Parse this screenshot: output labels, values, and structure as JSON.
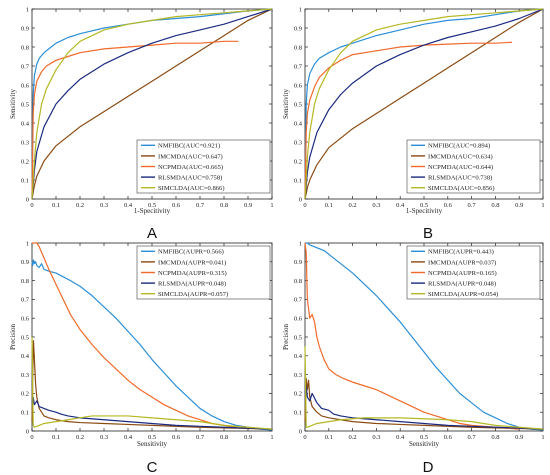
{
  "chart_data": [
    {
      "panel_label": "A",
      "type": "line",
      "xlabel": "1-Specitivity",
      "ylabel": "Sensitivity",
      "xlim": [
        0,
        1
      ],
      "ylim": [
        0,
        1
      ],
      "xticks": [
        "0",
        "0.1",
        "0.2",
        "0.3",
        "0.4",
        "0.5",
        "0.6",
        "0.7",
        "0.8",
        "0.9",
        "1"
      ],
      "yticks": [
        "0",
        "0.1",
        "0.2",
        "0.3",
        "0.4",
        "0.5",
        "0.6",
        "0.7",
        "0.8",
        "0.9",
        "1"
      ],
      "grid": false,
      "legend_position": "bottom-right",
      "series": [
        {
          "name": "NMFIBC(AUC=0.921)",
          "color": "#2b8fd8",
          "x": [
            0,
            0.005,
            0.01,
            0.02,
            0.03,
            0.05,
            0.08,
            0.1,
            0.15,
            0.2,
            0.3,
            0.4,
            0.5,
            0.6,
            0.7,
            0.8,
            0.9,
            1
          ],
          "y": [
            0,
            0.55,
            0.65,
            0.71,
            0.74,
            0.77,
            0.8,
            0.82,
            0.85,
            0.87,
            0.9,
            0.92,
            0.94,
            0.95,
            0.96,
            0.975,
            0.99,
            1
          ]
        },
        {
          "name": "IMCMDA(AUC=0.647)",
          "color": "#8b4a12",
          "x": [
            0,
            0.01,
            0.02,
            0.05,
            0.1,
            0.2,
            0.3,
            0.4,
            0.5,
            0.6,
            0.7,
            0.8,
            0.9,
            1
          ],
          "y": [
            0,
            0.07,
            0.12,
            0.2,
            0.28,
            0.38,
            0.46,
            0.54,
            0.62,
            0.7,
            0.78,
            0.86,
            0.94,
            1
          ]
        },
        {
          "name": "NCPMDA(AUC=0.665)",
          "color": "#f26a2a",
          "x": [
            0,
            0.005,
            0.01,
            0.02,
            0.04,
            0.06,
            0.1,
            0.15,
            0.2,
            0.3,
            0.4,
            0.5,
            0.6,
            0.7,
            0.8,
            0.86
          ],
          "y": [
            0,
            0.45,
            0.55,
            0.62,
            0.67,
            0.7,
            0.73,
            0.75,
            0.77,
            0.79,
            0.8,
            0.81,
            0.82,
            0.82,
            0.83,
            0.83
          ]
        },
        {
          "name": "RLSMDA(AUC=0.758)",
          "color": "#1a2a80",
          "x": [
            0,
            0.01,
            0.02,
            0.05,
            0.1,
            0.15,
            0.2,
            0.3,
            0.4,
            0.5,
            0.6,
            0.7,
            0.8,
            0.9,
            1
          ],
          "y": [
            0,
            0.15,
            0.25,
            0.38,
            0.5,
            0.57,
            0.63,
            0.71,
            0.77,
            0.82,
            0.86,
            0.89,
            0.92,
            0.96,
            1
          ]
        },
        {
          "name": "SIMCLDA(AUC=0.866)",
          "color": "#b5b822",
          "x": [
            0,
            0.01,
            0.02,
            0.04,
            0.06,
            0.1,
            0.15,
            0.2,
            0.3,
            0.4,
            0.5,
            0.6,
            0.7,
            0.8,
            0.9,
            1
          ],
          "y": [
            0,
            0.2,
            0.35,
            0.5,
            0.58,
            0.68,
            0.77,
            0.83,
            0.89,
            0.92,
            0.94,
            0.96,
            0.97,
            0.98,
            0.99,
            1
          ]
        }
      ]
    },
    {
      "panel_label": "B",
      "type": "line",
      "xlabel": "1-Specitivity",
      "ylabel": "Sensitivity",
      "xlim": [
        0,
        1
      ],
      "ylim": [
        0,
        1
      ],
      "xticks": [
        "0",
        "0.1",
        "0.2",
        "0.3",
        "0.4",
        "0.5",
        "0.6",
        "0.7",
        "0.8",
        "0.9",
        "1"
      ],
      "yticks": [
        "0",
        "0.1",
        "0.2",
        "0.3",
        "0.4",
        "0.5",
        "0.6",
        "0.7",
        "0.8",
        "0.9",
        "1"
      ],
      "grid": false,
      "legend_position": "bottom-right",
      "series": [
        {
          "name": "NMFIBC(AUC=0.894)",
          "color": "#2b8fd8",
          "x": [
            0,
            0.005,
            0.01,
            0.02,
            0.04,
            0.06,
            0.1,
            0.15,
            0.2,
            0.3,
            0.4,
            0.5,
            0.6,
            0.7,
            0.8,
            0.9,
            1
          ],
          "y": [
            0,
            0.5,
            0.6,
            0.66,
            0.71,
            0.74,
            0.77,
            0.8,
            0.82,
            0.86,
            0.89,
            0.92,
            0.94,
            0.95,
            0.97,
            0.99,
            1
          ]
        },
        {
          "name": "IMCMDA(AUC=0.634)",
          "color": "#8b4a12",
          "x": [
            0,
            0.01,
            0.02,
            0.05,
            0.1,
            0.2,
            0.3,
            0.4,
            0.5,
            0.6,
            0.7,
            0.8,
            0.9,
            1
          ],
          "y": [
            0,
            0.06,
            0.1,
            0.18,
            0.27,
            0.37,
            0.45,
            0.53,
            0.61,
            0.69,
            0.77,
            0.85,
            0.93,
            1
          ]
        },
        {
          "name": "NCPMDA(AUC=0.644)",
          "color": "#f26a2a",
          "x": [
            0,
            0.005,
            0.01,
            0.02,
            0.04,
            0.06,
            0.1,
            0.15,
            0.2,
            0.3,
            0.4,
            0.5,
            0.6,
            0.7,
            0.8,
            0.87
          ],
          "y": [
            0,
            0.35,
            0.45,
            0.52,
            0.59,
            0.64,
            0.69,
            0.73,
            0.76,
            0.78,
            0.8,
            0.81,
            0.815,
            0.82,
            0.82,
            0.825
          ]
        },
        {
          "name": "RLSMDA(AUC=0.738)",
          "color": "#1a2a80",
          "x": [
            0,
            0.01,
            0.02,
            0.05,
            0.1,
            0.15,
            0.2,
            0.3,
            0.4,
            0.5,
            0.6,
            0.7,
            0.8,
            0.9,
            1
          ],
          "y": [
            0,
            0.14,
            0.22,
            0.35,
            0.47,
            0.55,
            0.61,
            0.7,
            0.76,
            0.81,
            0.85,
            0.88,
            0.91,
            0.95,
            1
          ]
        },
        {
          "name": "SIMCLDA(AUC=0.856)",
          "color": "#b5b822",
          "x": [
            0,
            0.01,
            0.02,
            0.04,
            0.06,
            0.1,
            0.15,
            0.2,
            0.3,
            0.4,
            0.5,
            0.6,
            0.7,
            0.8,
            0.9,
            1
          ],
          "y": [
            0,
            0.22,
            0.35,
            0.5,
            0.58,
            0.68,
            0.77,
            0.83,
            0.89,
            0.92,
            0.94,
            0.96,
            0.97,
            0.98,
            0.99,
            1
          ]
        }
      ]
    },
    {
      "panel_label": "C",
      "type": "line",
      "xlabel": "Sensitivity",
      "ylabel": "Precision",
      "xlim": [
        0,
        1
      ],
      "ylim": [
        0,
        1
      ],
      "xticks": [
        "0",
        "0.1",
        "0.2",
        "0.3",
        "0.4",
        "0.5",
        "0.6",
        "0.7",
        "0.8",
        "0.9",
        "1"
      ],
      "yticks": [
        "0",
        "0.1",
        "0.2",
        "0.3",
        "0.4",
        "0.5",
        "0.6",
        "0.7",
        "0.8",
        "0.9",
        "1"
      ],
      "grid": false,
      "legend_position": "top-right",
      "series": [
        {
          "name": "NMFIBC(AUPR=0.566)",
          "color": "#2b8fd8",
          "x": [
            0,
            0.003,
            0.006,
            0.01,
            0.015,
            0.02,
            0.03,
            0.04,
            0.05,
            0.07,
            0.1,
            0.13,
            0.16,
            0.2,
            0.25,
            0.3,
            0.35,
            0.4,
            0.45,
            0.5,
            0.55,
            0.6,
            0.65,
            0.7,
            0.75,
            0.8,
            0.85,
            0.9,
            0.95,
            1
          ],
          "y": [
            0.9,
            0.88,
            0.91,
            0.89,
            0.9,
            0.88,
            0.87,
            0.89,
            0.86,
            0.85,
            0.84,
            0.82,
            0.8,
            0.77,
            0.72,
            0.66,
            0.6,
            0.53,
            0.46,
            0.38,
            0.31,
            0.24,
            0.18,
            0.12,
            0.08,
            0.05,
            0.03,
            0.02,
            0.01,
            0.005
          ]
        },
        {
          "name": "IMCMDA(AUPR=0.041)",
          "color": "#8b4a12",
          "x": [
            0,
            0.003,
            0.006,
            0.01,
            0.015,
            0.02,
            0.03,
            0.04,
            0.05,
            0.07,
            0.1,
            0.15,
            0.2,
            0.3,
            0.4,
            0.5,
            0.7,
            1
          ],
          "y": [
            0.05,
            0.3,
            0.48,
            0.38,
            0.25,
            0.18,
            0.12,
            0.1,
            0.08,
            0.07,
            0.06,
            0.05,
            0.045,
            0.04,
            0.035,
            0.03,
            0.02,
            0.01
          ]
        },
        {
          "name": "NCPMDA(AUPR=0.315)",
          "color": "#f26a2a",
          "x": [
            0,
            0.01,
            0.02,
            0.03,
            0.05,
            0.07,
            0.1,
            0.13,
            0.16,
            0.2,
            0.25,
            0.3,
            0.35,
            0.4,
            0.45,
            0.5,
            0.55,
            0.6,
            0.65,
            0.7,
            0.75,
            0.8,
            0.85
          ],
          "y": [
            1,
            1,
            1,
            0.98,
            0.92,
            0.86,
            0.78,
            0.7,
            0.62,
            0.54,
            0.46,
            0.39,
            0.33,
            0.27,
            0.22,
            0.18,
            0.14,
            0.11,
            0.08,
            0.06,
            0.04,
            0.03,
            0.02
          ]
        },
        {
          "name": "RLSMDA(AUPR=0.048)",
          "color": "#1a2a80",
          "x": [
            0,
            0.005,
            0.01,
            0.02,
            0.03,
            0.05,
            0.07,
            0.1,
            0.12,
            0.15,
            0.2,
            0.3,
            0.4,
            0.5,
            0.6,
            0.7,
            0.8,
            0.9,
            1
          ],
          "y": [
            0.15,
            0.18,
            0.14,
            0.16,
            0.13,
            0.12,
            0.11,
            0.1,
            0.09,
            0.08,
            0.07,
            0.06,
            0.05,
            0.04,
            0.03,
            0.025,
            0.02,
            0.015,
            0.01
          ]
        },
        {
          "name": "SIMCLDA(AUPR=0.057)",
          "color": "#b5b822",
          "x": [
            0,
            0.005,
            0.01,
            0.02,
            0.05,
            0.1,
            0.15,
            0.2,
            0.25,
            0.3,
            0.4,
            0.5,
            0.6,
            0.7,
            0.8,
            0.9,
            1
          ],
          "y": [
            0.5,
            0.03,
            0.02,
            0.025,
            0.04,
            0.05,
            0.06,
            0.07,
            0.08,
            0.08,
            0.08,
            0.07,
            0.06,
            0.05,
            0.03,
            0.02,
            0.01
          ]
        }
      ]
    },
    {
      "panel_label": "D",
      "type": "line",
      "xlabel": "Sensitivity",
      "ylabel": "Precision",
      "xlim": [
        0,
        1
      ],
      "ylim": [
        0,
        1
      ],
      "xticks": [
        "0",
        "0.1",
        "0.2",
        "0.3",
        "0.4",
        "0.5",
        "0.6",
        "0.7",
        "0.8",
        "0.9",
        "1"
      ],
      "yticks": [
        "0",
        "0.1",
        "0.2",
        "0.3",
        "0.4",
        "0.5",
        "0.6",
        "0.7",
        "0.8",
        "0.9",
        "1"
      ],
      "grid": false,
      "legend_position": "top-right",
      "series": [
        {
          "name": "NMFIBC(AUPR=0.443)",
          "color": "#2b8fd8",
          "x": [
            0,
            0.01,
            0.02,
            0.04,
            0.06,
            0.08,
            0.1,
            0.13,
            0.16,
            0.2,
            0.25,
            0.3,
            0.35,
            0.4,
            0.45,
            0.5,
            0.55,
            0.6,
            0.65,
            0.7,
            0.75,
            0.8,
            0.85,
            0.9,
            0.95,
            1
          ],
          "y": [
            1,
            1,
            0.99,
            0.98,
            0.97,
            0.96,
            0.94,
            0.91,
            0.88,
            0.84,
            0.78,
            0.72,
            0.65,
            0.58,
            0.5,
            0.42,
            0.34,
            0.27,
            0.2,
            0.15,
            0.1,
            0.07,
            0.04,
            0.02,
            0.01,
            0.005
          ]
        },
        {
          "name": "IMCMDA(AUPR=0.037)",
          "color": "#8b4a12",
          "x": [
            0,
            0.005,
            0.01,
            0.015,
            0.02,
            0.03,
            0.05,
            0.07,
            0.1,
            0.15,
            0.2,
            0.3,
            0.4,
            0.5,
            0.7,
            1
          ],
          "y": [
            0.05,
            0.28,
            0.22,
            0.27,
            0.18,
            0.13,
            0.1,
            0.08,
            0.07,
            0.06,
            0.05,
            0.04,
            0.035,
            0.03,
            0.02,
            0.01
          ]
        },
        {
          "name": "NCPMDA(AUPR=0.165)",
          "color": "#f26a2a",
          "x": [
            0,
            0.005,
            0.01,
            0.02,
            0.03,
            0.04,
            0.05,
            0.06,
            0.08,
            0.1,
            0.13,
            0.16,
            0.2,
            0.25,
            0.3,
            0.35,
            0.4,
            0.45,
            0.5,
            0.55,
            0.6,
            0.65,
            0.7,
            0.8,
            0.9
          ],
          "y": [
            1,
            0.95,
            0.7,
            0.6,
            0.62,
            0.58,
            0.5,
            0.45,
            0.38,
            0.33,
            0.3,
            0.28,
            0.26,
            0.24,
            0.22,
            0.19,
            0.16,
            0.13,
            0.1,
            0.08,
            0.06,
            0.04,
            0.03,
            0.02,
            0.01
          ]
        },
        {
          "name": "RLSMDA(AUPR=0.048)",
          "color": "#1a2a80",
          "x": [
            0,
            0.005,
            0.01,
            0.02,
            0.03,
            0.05,
            0.07,
            0.1,
            0.12,
            0.15,
            0.2,
            0.3,
            0.4,
            0.5,
            0.6,
            0.7,
            0.8,
            0.9,
            1
          ],
          "y": [
            0.2,
            0.24,
            0.18,
            0.16,
            0.2,
            0.15,
            0.12,
            0.11,
            0.09,
            0.08,
            0.07,
            0.06,
            0.05,
            0.04,
            0.03,
            0.025,
            0.02,
            0.015,
            0.01
          ]
        },
        {
          "name": "SIMCLDA(AUPR=0.054)",
          "color": "#b5b822",
          "x": [
            0,
            0.005,
            0.01,
            0.02,
            0.05,
            0.1,
            0.15,
            0.2,
            0.25,
            0.3,
            0.4,
            0.5,
            0.6,
            0.7,
            0.8,
            0.9,
            1
          ],
          "y": [
            0.45,
            0.02,
            0.02,
            0.025,
            0.04,
            0.05,
            0.06,
            0.065,
            0.07,
            0.07,
            0.07,
            0.065,
            0.06,
            0.05,
            0.03,
            0.02,
            0.01
          ]
        }
      ]
    }
  ]
}
